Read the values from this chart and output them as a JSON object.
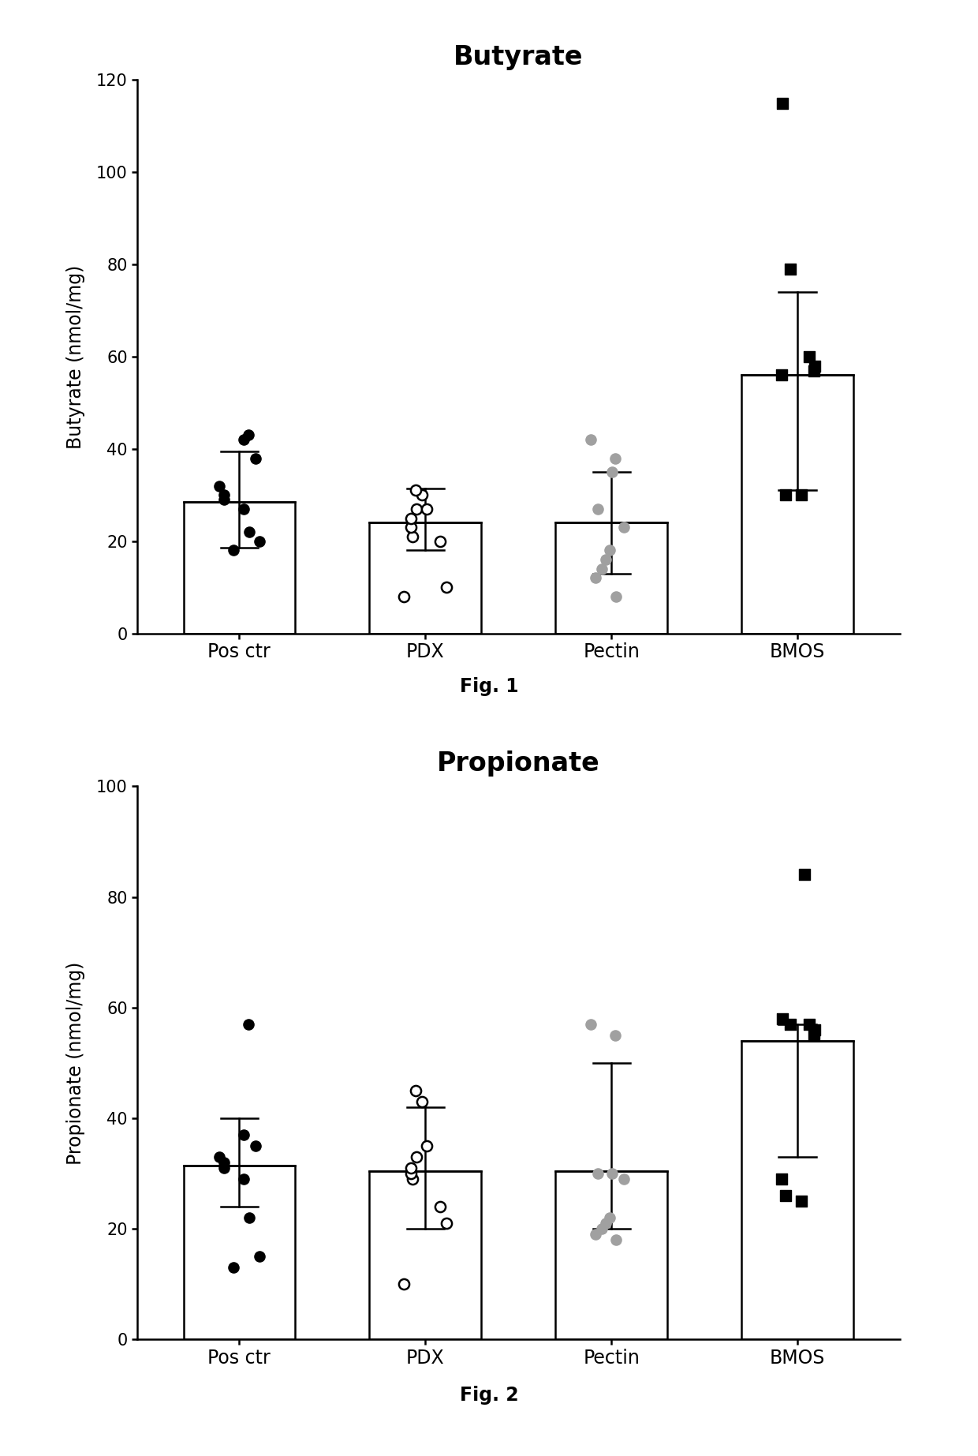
{
  "fig1": {
    "title": "Butyrate",
    "ylabel": "Butyrate (nmol/mg)",
    "fig_label": "Fig. 1",
    "ylim": [
      0,
      120
    ],
    "yticks": [
      0,
      20,
      40,
      60,
      80,
      100,
      120
    ],
    "categories": [
      "Pos ctr",
      "PDX",
      "Pectin",
      "BMOS"
    ],
    "bar_means": [
      28.5,
      24.0,
      24.0,
      56.0
    ],
    "bar_sd_upper": [
      39.5,
      31.5,
      35.0,
      74.0
    ],
    "bar_sd_lower": [
      18.5,
      18.0,
      13.0,
      31.0
    ],
    "dot_styles": [
      "filled_black",
      "open",
      "filled_gray",
      "filled_black_sq"
    ],
    "dot_markers": [
      "o",
      "o",
      "o",
      "s"
    ],
    "dots": [
      [
        18,
        20,
        22,
        27,
        29,
        30,
        32,
        38,
        42,
        43
      ],
      [
        8,
        10,
        20,
        21,
        23,
        25,
        27,
        27,
        30,
        31
      ],
      [
        8,
        12,
        14,
        16,
        18,
        23,
        27,
        35,
        38,
        42
      ],
      [
        30,
        30,
        56,
        57,
        58,
        60,
        79,
        115
      ]
    ]
  },
  "fig2": {
    "title": "Propionate",
    "ylabel": "Propionate (nmol/mg)",
    "fig_label": "Fig. 2",
    "ylim": [
      0,
      100
    ],
    "yticks": [
      0,
      20,
      40,
      60,
      80,
      100
    ],
    "categories": [
      "Pos ctr",
      "PDX",
      "Pectin",
      "BMOS"
    ],
    "bar_means": [
      31.5,
      30.5,
      30.5,
      54.0
    ],
    "bar_sd_upper": [
      40.0,
      42.0,
      50.0,
      57.0
    ],
    "bar_sd_lower": [
      24.0,
      20.0,
      20.0,
      33.0
    ],
    "dot_styles": [
      "filled_black",
      "open",
      "filled_gray",
      "filled_black_sq"
    ],
    "dot_markers": [
      "o",
      "o",
      "o",
      "s"
    ],
    "dots": [
      [
        13,
        15,
        22,
        29,
        31,
        32,
        33,
        35,
        37,
        57
      ],
      [
        10,
        21,
        24,
        29,
        30,
        31,
        33,
        35,
        43,
        45
      ],
      [
        18,
        19,
        20,
        21,
        22,
        29,
        30,
        30,
        55,
        57
      ],
      [
        25,
        26,
        29,
        55,
        56,
        57,
        57,
        58,
        84
      ]
    ]
  }
}
